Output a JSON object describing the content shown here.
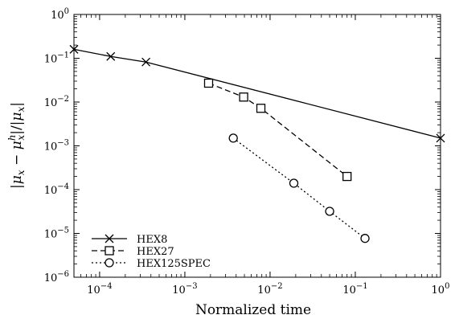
{
  "chart_data": {
    "type": "line",
    "xlabel": "Normalized time",
    "ylabel": "|μ_x − μ_x^h| / |μ_x|",
    "xscale": "log",
    "yscale": "log",
    "xlim": [
      5e-05,
      1
    ],
    "ylim": [
      1e-06,
      1
    ],
    "grid": false,
    "legend_position": "bottom-left",
    "x_ticks": [
      {
        "value": 0.0001,
        "mantissa": "10",
        "exp": "−4"
      },
      {
        "value": 0.001,
        "mantissa": "10",
        "exp": "−3"
      },
      {
        "value": 0.01,
        "mantissa": "10",
        "exp": "−2"
      },
      {
        "value": 0.1,
        "mantissa": "10",
        "exp": "−1"
      },
      {
        "value": 1,
        "mantissa": "10",
        "exp": "0"
      }
    ],
    "y_ticks": [
      {
        "value": 1e-06,
        "mantissa": "10",
        "exp": "−6"
      },
      {
        "value": 1e-05,
        "mantissa": "10",
        "exp": "−5"
      },
      {
        "value": 0.0001,
        "mantissa": "10",
        "exp": "−4"
      },
      {
        "value": 0.001,
        "mantissa": "10",
        "exp": "−3"
      },
      {
        "value": 0.01,
        "mantissa": "10",
        "exp": "−2"
      },
      {
        "value": 0.1,
        "mantissa": "10",
        "exp": "−1"
      },
      {
        "value": 1,
        "mantissa": "10",
        "exp": "0"
      }
    ],
    "series": [
      {
        "name": "HEX8",
        "marker": "x",
        "line": "solid",
        "x": [
          5e-05,
          0.000135,
          0.00035,
          1
        ],
        "y": [
          0.16,
          0.11,
          0.082,
          0.0015
        ]
      },
      {
        "name": "HEX27",
        "marker": "square",
        "line": "dashed",
        "x": [
          0.0019,
          0.0049,
          0.0078,
          0.08
        ],
        "y": [
          0.027,
          0.013,
          0.0072,
          0.0002
        ]
      },
      {
        "name": "HEX125SPEC",
        "marker": "circle",
        "line": "dotted",
        "x": [
          0.0037,
          0.019,
          0.05,
          0.13
        ],
        "y": [
          0.0015,
          0.00014,
          3.2e-05,
          7.7e-06
        ]
      }
    ]
  }
}
